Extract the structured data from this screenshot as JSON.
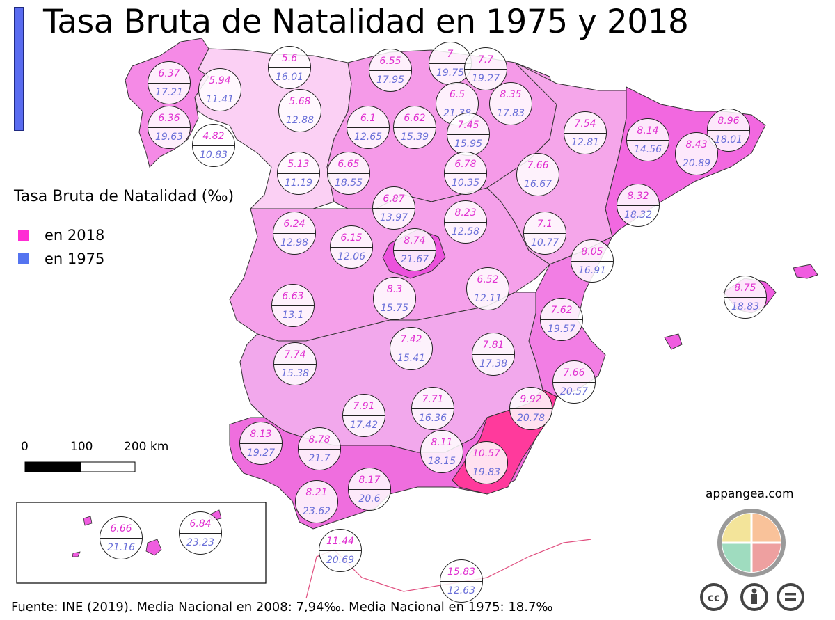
{
  "title": "Tasa Bruta de Natalidad en 1975 y 2018",
  "legend": {
    "title": "Tasa Bruta de Natalidad (‰)",
    "items": [
      {
        "label": "en 2018",
        "color": "#ff2cd4"
      },
      {
        "label": "en 1975",
        "color": "#5474f0"
      }
    ]
  },
  "scale_bar": {
    "labels": [
      "0",
      "100",
      "200 km"
    ]
  },
  "source": "Fuente: INE (2019).  Media Nacional en 2008: 7,94‰. Media Nacional en 1975: 18.7‰",
  "credit": "appangea.com",
  "icons": [
    "appangea-puzzle-logo",
    "cc-icon",
    "by-icon",
    "nd-icon"
  ],
  "provinces": [
    {
      "v2018": "6.37",
      "v1975": "17.21"
    },
    {
      "v2018": "5.94",
      "v1975": "11.41"
    },
    {
      "v2018": "5.6",
      "v1975": "16.01"
    },
    {
      "v2018": "6.55",
      "v1975": "17.95"
    },
    {
      "v2018": "7",
      "v1975": "19.75"
    },
    {
      "v2018": "7.7",
      "v1975": "19.27"
    },
    {
      "v2018": "8.35",
      "v1975": "17.83"
    },
    {
      "v2018": "6.36",
      "v1975": "19.63"
    },
    {
      "v2018": "4.82",
      "v1975": "10.83"
    },
    {
      "v2018": "5.68",
      "v1975": "12.88"
    },
    {
      "v2018": "6.1",
      "v1975": "12.65"
    },
    {
      "v2018": "6.62",
      "v1975": "15.39"
    },
    {
      "v2018": "6.5",
      "v1975": "21.38"
    },
    {
      "v2018": "7.45",
      "v1975": "15.95"
    },
    {
      "v2018": "7.54",
      "v1975": "12.81"
    },
    {
      "v2018": "8.14",
      "v1975": "14.56"
    },
    {
      "v2018": "8.96",
      "v1975": "18.01"
    },
    {
      "v2018": "8.43",
      "v1975": "20.89"
    },
    {
      "v2018": "5.13",
      "v1975": "11.19"
    },
    {
      "v2018": "6.65",
      "v1975": "18.55"
    },
    {
      "v2018": "6.78",
      "v1975": "10.35"
    },
    {
      "v2018": "7.66",
      "v1975": "16.67"
    },
    {
      "v2018": "8.32",
      "v1975": "18.32"
    },
    {
      "v2018": "6.87",
      "v1975": "13.97"
    },
    {
      "v2018": "6.24",
      "v1975": "12.98"
    },
    {
      "v2018": "6.15",
      "v1975": "12.06"
    },
    {
      "v2018": "8.74",
      "v1975": "21.67"
    },
    {
      "v2018": "8.23",
      "v1975": "12.58"
    },
    {
      "v2018": "7.1",
      "v1975": "10.77"
    },
    {
      "v2018": "8.05",
      "v1975": "16.91"
    },
    {
      "v2018": "6.63",
      "v1975": "13.1"
    },
    {
      "v2018": "8.3",
      "v1975": "15.75"
    },
    {
      "v2018": "6.52",
      "v1975": "12.11"
    },
    {
      "v2018": "8.75",
      "v1975": "18.83"
    },
    {
      "v2018": "7.62",
      "v1975": "19.57"
    },
    {
      "v2018": "7.74",
      "v1975": "15.38"
    },
    {
      "v2018": "7.42",
      "v1975": "15.41"
    },
    {
      "v2018": "7.81",
      "v1975": "17.38"
    },
    {
      "v2018": "7.66",
      "v1975": "20.57"
    },
    {
      "v2018": "7.91",
      "v1975": "17.42"
    },
    {
      "v2018": "7.71",
      "v1975": "16.36"
    },
    {
      "v2018": "9.92",
      "v1975": "20.78"
    },
    {
      "v2018": "8.13",
      "v1975": "19.27"
    },
    {
      "v2018": "8.78",
      "v1975": "21.7"
    },
    {
      "v2018": "8.11",
      "v1975": "18.15"
    },
    {
      "v2018": "10.57",
      "v1975": "19.83"
    },
    {
      "v2018": "8.17",
      "v1975": "20.6"
    },
    {
      "v2018": "8.21",
      "v1975": "23.62"
    },
    {
      "v2018": "11.44",
      "v1975": "20.69"
    },
    {
      "v2018": "15.83",
      "v1975": "12.63"
    },
    {
      "v2018": "6.66",
      "v1975": "21.16"
    },
    {
      "v2018": "6.84",
      "v1975": "23.23"
    }
  ]
}
